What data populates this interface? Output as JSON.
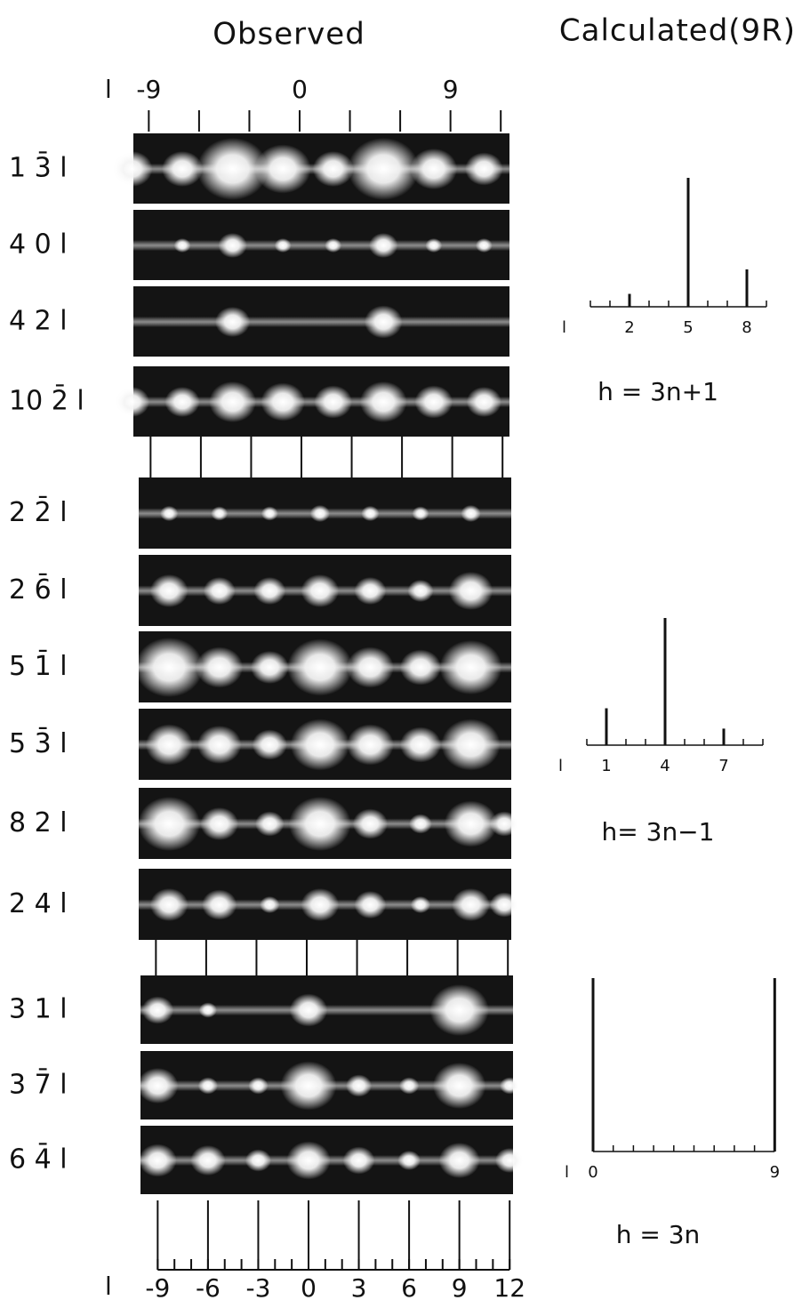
{
  "headers": {
    "observed": "Observed",
    "calculated": "Calculated(9R)"
  },
  "top_axis": {
    "label": "l",
    "ticks": [
      -9,
      -6,
      -3,
      0,
      3,
      6,
      9,
      12
    ],
    "labeled": [
      true,
      false,
      false,
      true,
      false,
      false,
      true,
      false
    ]
  },
  "bottom_axis": {
    "label": "l",
    "xlim": [
      -9,
      12
    ],
    "ticks": [
      -9,
      -6,
      -3,
      0,
      3,
      6,
      9,
      12
    ]
  },
  "groups": [
    {
      "rows": [
        {
          "label": "1 3̄ l",
          "spots": [
            {
              "l": -10,
              "intensity": 0.5
            },
            {
              "l": -7,
              "intensity": 0.5
            },
            {
              "l": -4,
              "intensity": 1
            },
            {
              "l": -1,
              "intensity": 0.75
            },
            {
              "l": 2,
              "intensity": 0.5
            },
            {
              "l": 5,
              "intensity": 1
            },
            {
              "l": 8,
              "intensity": 0.6
            },
            {
              "l": 11,
              "intensity": 0.45
            }
          ]
        },
        {
          "label": "4 0 l",
          "spots": [
            {
              "l": -7,
              "intensity": 0.1
            },
            {
              "l": -4,
              "intensity": 0.3
            },
            {
              "l": -1,
              "intensity": 0.1
            },
            {
              "l": 2,
              "intensity": 0.1
            },
            {
              "l": 5,
              "intensity": 0.3
            },
            {
              "l": 8,
              "intensity": 0.1
            },
            {
              "l": 11,
              "intensity": 0.1
            }
          ]
        },
        {
          "label": "4 2 l",
          "spots": [
            {
              "l": -4,
              "intensity": 0.4
            },
            {
              "l": 5,
              "intensity": 0.45
            }
          ]
        },
        {
          "label": "10 2̄ l",
          "spots": [
            {
              "l": -10,
              "intensity": 0.4
            },
            {
              "l": -7,
              "intensity": 0.4
            },
            {
              "l": -4,
              "intensity": 0.6
            },
            {
              "l": -1,
              "intensity": 0.55
            },
            {
              "l": 2,
              "intensity": 0.45
            },
            {
              "l": 5,
              "intensity": 0.6
            },
            {
              "l": 8,
              "intensity": 0.45
            },
            {
              "l": 11,
              "intensity": 0.4
            }
          ]
        }
      ]
    },
    {
      "rows": [
        {
          "label": "2 2̄ l",
          "spots": [
            {
              "l": -8,
              "intensity": 0.12
            },
            {
              "l": -5,
              "intensity": 0.1
            },
            {
              "l": -2,
              "intensity": 0.1
            },
            {
              "l": 1,
              "intensity": 0.15
            },
            {
              "l": 4,
              "intensity": 0.12
            },
            {
              "l": 7,
              "intensity": 0.1
            },
            {
              "l": 10,
              "intensity": 0.15
            }
          ]
        },
        {
          "label": "2 6̄ l",
          "spots": [
            {
              "l": -8,
              "intensity": 0.45
            },
            {
              "l": -5,
              "intensity": 0.35
            },
            {
              "l": -2,
              "intensity": 0.35
            },
            {
              "l": 1,
              "intensity": 0.45
            },
            {
              "l": 4,
              "intensity": 0.35
            },
            {
              "l": 7,
              "intensity": 0.25
            },
            {
              "l": 10,
              "intensity": 0.55
            }
          ]
        },
        {
          "label": "5 1̄ l",
          "spots": [
            {
              "l": -8,
              "intensity": 0.95
            },
            {
              "l": -5,
              "intensity": 0.6
            },
            {
              "l": -2,
              "intensity": 0.45
            },
            {
              "l": 1,
              "intensity": 0.9
            },
            {
              "l": 4,
              "intensity": 0.6
            },
            {
              "l": 7,
              "intensity": 0.5
            },
            {
              "l": 10,
              "intensity": 0.85
            }
          ]
        },
        {
          "label": "5 3̄ l",
          "spots": [
            {
              "l": -8,
              "intensity": 0.6
            },
            {
              "l": -5,
              "intensity": 0.55
            },
            {
              "l": -2,
              "intensity": 0.4
            },
            {
              "l": 1,
              "intensity": 0.8
            },
            {
              "l": 4,
              "intensity": 0.6
            },
            {
              "l": 7,
              "intensity": 0.5
            },
            {
              "l": 10,
              "intensity": 0.8
            }
          ]
        },
        {
          "label": "8 2 l",
          "spots": [
            {
              "l": -8,
              "intensity": 0.85
            },
            {
              "l": -5,
              "intensity": 0.45
            },
            {
              "l": -2,
              "intensity": 0.3
            },
            {
              "l": 1,
              "intensity": 0.85
            },
            {
              "l": 4,
              "intensity": 0.4
            },
            {
              "l": 7,
              "intensity": 0.2
            },
            {
              "l": 10,
              "intensity": 0.7
            },
            {
              "l": 12,
              "intensity": 0.3
            }
          ]
        },
        {
          "label": "2 4 l",
          "spots": [
            {
              "l": -8,
              "intensity": 0.45
            },
            {
              "l": -5,
              "intensity": 0.4
            },
            {
              "l": -2,
              "intensity": 0.15
            },
            {
              "l": 1,
              "intensity": 0.45
            },
            {
              "l": 4,
              "intensity": 0.35
            },
            {
              "l": 7,
              "intensity": 0.15
            },
            {
              "l": 10,
              "intensity": 0.45
            },
            {
              "l": 12,
              "intensity": 0.3
            }
          ]
        }
      ]
    },
    {
      "rows": [
        {
          "label": "3 1 l",
          "spots": [
            {
              "l": -9,
              "intensity": 0.35
            },
            {
              "l": -6,
              "intensity": 0.12
            },
            {
              "l": 0,
              "intensity": 0.45
            },
            {
              "l": 9,
              "intensity": 0.8
            }
          ]
        },
        {
          "label": "3 7̄ l",
          "spots": [
            {
              "l": -9,
              "intensity": 0.5
            },
            {
              "l": -6,
              "intensity": 0.15
            },
            {
              "l": -3,
              "intensity": 0.15
            },
            {
              "l": 0,
              "intensity": 0.75
            },
            {
              "l": 3,
              "intensity": 0.25
            },
            {
              "l": 6,
              "intensity": 0.15
            },
            {
              "l": 9,
              "intensity": 0.7
            },
            {
              "l": 12,
              "intensity": 0.15
            }
          ]
        },
        {
          "label": "6 4̄ l",
          "spots": [
            {
              "l": -9,
              "intensity": 0.45
            },
            {
              "l": -6,
              "intensity": 0.4
            },
            {
              "l": -3,
              "intensity": 0.25
            },
            {
              "l": 0,
              "intensity": 0.55
            },
            {
              "l": 3,
              "intensity": 0.35
            },
            {
              "l": 6,
              "intensity": 0.2
            },
            {
              "l": 9,
              "intensity": 0.5
            },
            {
              "l": 12,
              "intensity": 0.3
            }
          ]
        }
      ]
    }
  ],
  "calculated": [
    {
      "axis_label": "l",
      "xlim": [
        0,
        9
      ],
      "xticks": [
        2,
        5,
        8
      ],
      "sticks": [
        {
          "l": 2,
          "intensity": 10
        },
        {
          "l": 5,
          "intensity": 100
        },
        {
          "l": 8,
          "intensity": 29
        }
      ],
      "caption": "h = 3n+1"
    },
    {
      "axis_label": "l",
      "xlim": [
        0,
        9
      ],
      "xticks": [
        1,
        4,
        7
      ],
      "sticks": [
        {
          "l": 1,
          "intensity": 29
        },
        {
          "l": 4,
          "intensity": 100
        },
        {
          "l": 7,
          "intensity": 13
        }
      ],
      "caption": "h= 3n−1"
    },
    {
      "axis_label": "l",
      "xlim": [
        0,
        9
      ],
      "xticks": [
        0,
        9
      ],
      "sticks": [
        {
          "l": 0,
          "intensity": 100
        },
        {
          "l": 9,
          "intensity": 100
        }
      ],
      "caption": "h = 3n"
    }
  ]
}
